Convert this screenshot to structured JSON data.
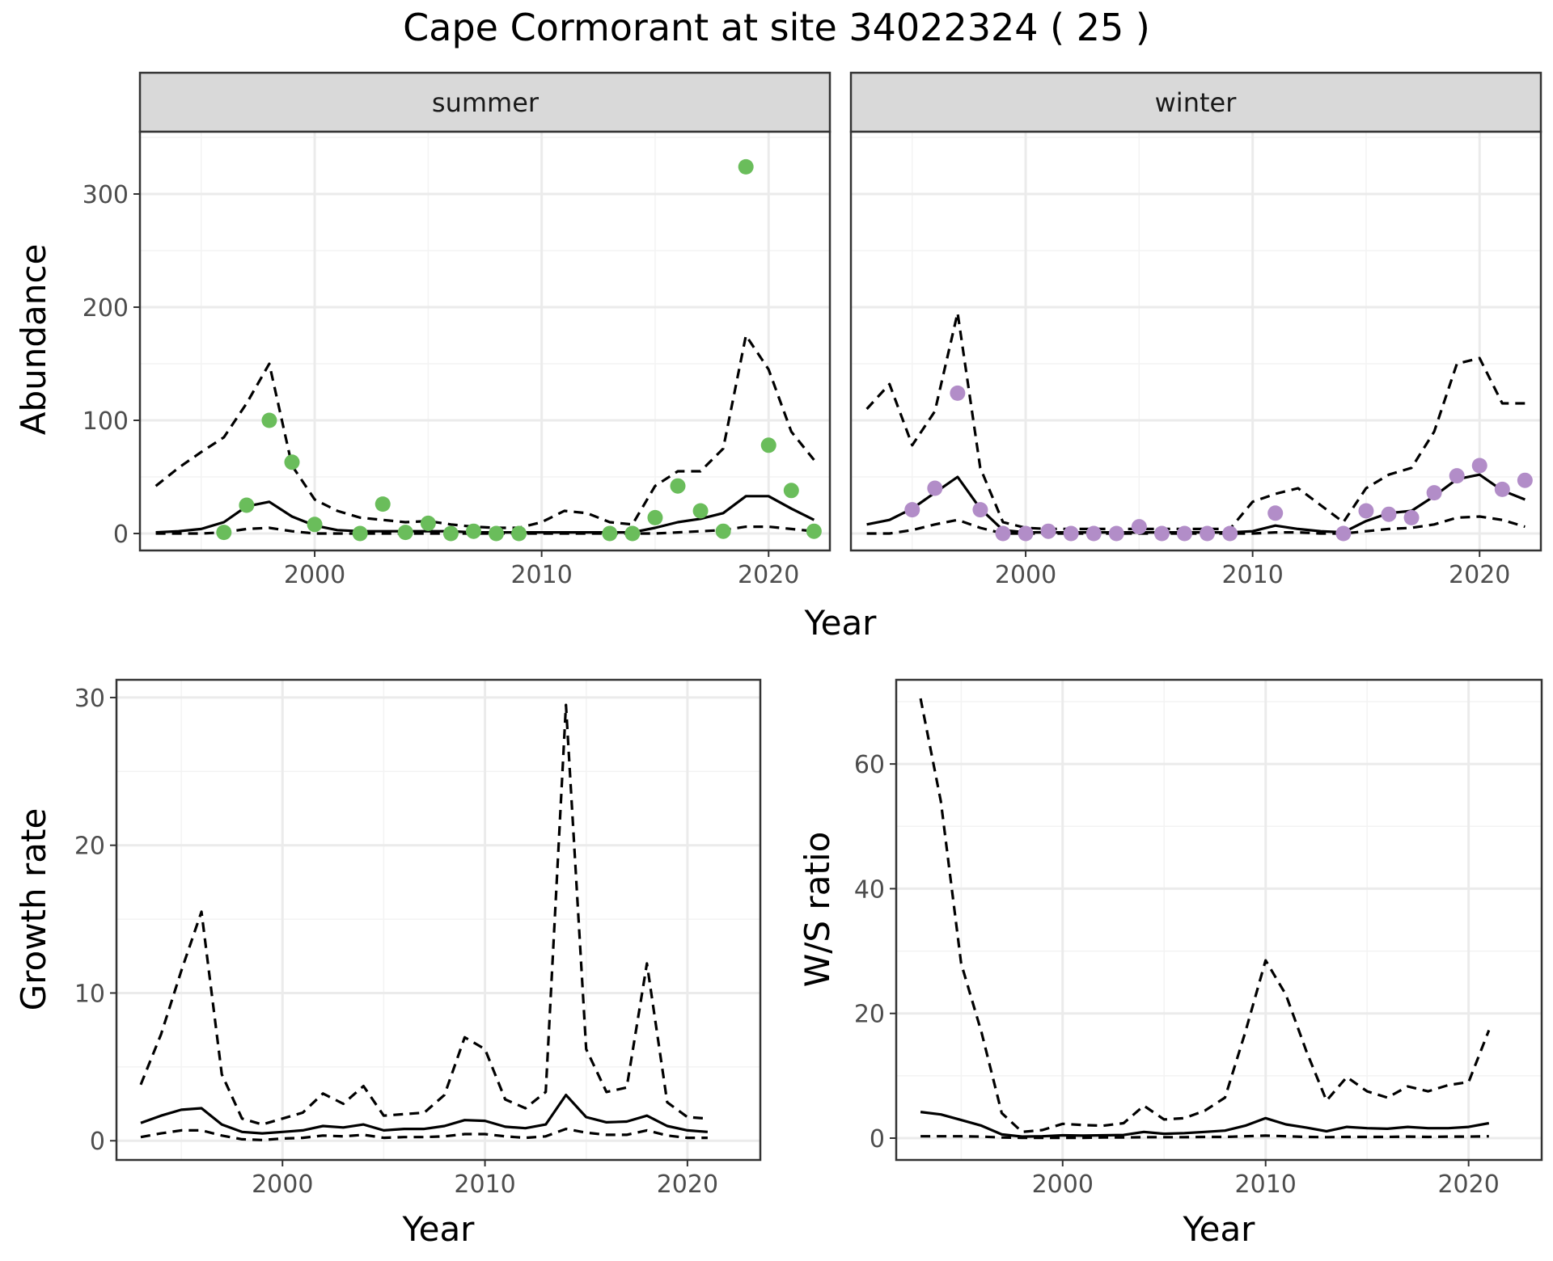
{
  "title": "Cape Cormorant at site 34022324 ( 25 )",
  "colors": {
    "summer_points": "#6ABD5B",
    "winter_points": "#B28DC8",
    "lines": "#000000",
    "panel_border": "#333333",
    "strip_fill": "#D9D9D9",
    "grid": "#EBEBEB"
  },
  "chart_data": [
    {
      "type": "line",
      "panel": "summer",
      "strip_label": "summer",
      "xlabel": "Year",
      "ylabel": "Abundance",
      "xlim": [
        1992.3,
        2022.7
      ],
      "ylim": [
        -15,
        355
      ],
      "xticks": [
        2000,
        2010,
        2020
      ],
      "yticks": [
        0,
        100,
        200,
        300
      ],
      "x": [
        1993,
        1994,
        1995,
        1996,
        1997,
        1998,
        1999,
        2000,
        2001,
        2002,
        2003,
        2004,
        2005,
        2006,
        2007,
        2008,
        2009,
        2010,
        2011,
        2012,
        2013,
        2014,
        2015,
        2016,
        2017,
        2018,
        2019,
        2020,
        2021,
        2022
      ],
      "series": [
        {
          "role": "estimate",
          "style": "solid",
          "values": [
            1,
            2,
            4,
            10,
            24,
            28,
            15,
            7,
            3,
            2,
            2,
            2,
            2,
            2,
            1,
            1,
            1,
            1,
            1,
            1,
            1,
            1,
            5,
            10,
            13,
            18,
            33,
            33,
            22,
            12
          ]
        },
        {
          "role": "upper",
          "style": "dashed",
          "values": [
            42,
            58,
            72,
            85,
            115,
            150,
            60,
            30,
            20,
            14,
            12,
            10,
            11,
            8,
            6,
            5,
            5,
            10,
            20,
            18,
            10,
            8,
            42,
            55,
            55,
            75,
            175,
            145,
            90,
            65
          ]
        },
        {
          "role": "lower",
          "style": "dashed",
          "values": [
            0,
            0,
            0,
            1,
            4,
            5,
            2,
            0,
            0,
            0,
            0,
            0,
            0,
            0,
            0,
            0,
            0,
            0,
            0,
            0,
            0,
            0,
            0,
            1,
            2,
            3,
            6,
            6,
            4,
            2
          ]
        }
      ],
      "points": {
        "x": [
          1996,
          1997,
          1998,
          1999,
          2000,
          2002,
          2003,
          2004,
          2005,
          2006,
          2007,
          2008,
          2009,
          2013,
          2014,
          2015,
          2016,
          2017,
          2018,
          2019,
          2020,
          2021,
          2022
        ],
        "y": [
          1,
          25,
          100,
          63,
          8,
          0,
          26,
          1,
          9,
          0,
          2,
          0,
          0,
          0,
          0,
          14,
          42,
          20,
          2,
          324,
          78,
          38,
          2
        ]
      }
    },
    {
      "type": "line",
      "panel": "winter",
      "strip_label": "winter",
      "xlabel": "Year",
      "ylabel": "Abundance",
      "xlim": [
        1992.3,
        2022.7
      ],
      "ylim": [
        -15,
        355
      ],
      "xticks": [
        2000,
        2010,
        2020
      ],
      "yticks": [
        0,
        100,
        200,
        300
      ],
      "x": [
        1993,
        1994,
        1995,
        1996,
        1997,
        1998,
        1999,
        2000,
        2001,
        2002,
        2003,
        2004,
        2005,
        2006,
        2007,
        2008,
        2009,
        2010,
        2011,
        2012,
        2013,
        2014,
        2015,
        2016,
        2017,
        2018,
        2019,
        2020,
        2021,
        2022
      ],
      "series": [
        {
          "role": "estimate",
          "style": "solid",
          "values": [
            8,
            12,
            22,
            36,
            50,
            22,
            3,
            1,
            1,
            1,
            1,
            1,
            1,
            1,
            1,
            1,
            1,
            2,
            7,
            4,
            2,
            1,
            11,
            18,
            20,
            33,
            48,
            52,
            38,
            30
          ]
        },
        {
          "role": "upper",
          "style": "dashed",
          "values": [
            110,
            132,
            78,
            108,
            195,
            58,
            10,
            5,
            4,
            4,
            4,
            4,
            4,
            4,
            4,
            4,
            4,
            28,
            35,
            40,
            25,
            10,
            40,
            52,
            58,
            90,
            150,
            155,
            115,
            115
          ]
        },
        {
          "role": "lower",
          "style": "dashed",
          "values": [
            0,
            0,
            3,
            8,
            12,
            5,
            0,
            0,
            0,
            0,
            0,
            0,
            0,
            0,
            0,
            0,
            0,
            0,
            1,
            1,
            0,
            0,
            2,
            4,
            5,
            8,
            14,
            15,
            12,
            6
          ]
        }
      ],
      "points": {
        "x": [
          1995,
          1996,
          1997,
          1998,
          1999,
          2000,
          2001,
          2002,
          2003,
          2004,
          2005,
          2006,
          2007,
          2008,
          2009,
          2011,
          2014,
          2015,
          2016,
          2017,
          2018,
          2019,
          2020,
          2021,
          2022
        ],
        "y": [
          21,
          40,
          124,
          21,
          0,
          0,
          2,
          0,
          0,
          0,
          6,
          0,
          0,
          0,
          0,
          18,
          0,
          20,
          17,
          14,
          36,
          51,
          60,
          39,
          47
        ]
      }
    },
    {
      "type": "line",
      "panel": "growth",
      "xlabel": "Year",
      "ylabel": "Growth rate",
      "xlim": [
        1991.8,
        2023.6
      ],
      "ylim": [
        -1.3,
        31.2
      ],
      "xticks": [
        2000,
        2010,
        2020
      ],
      "yticks": [
        0,
        10,
        20,
        30
      ],
      "x": [
        1993,
        1994,
        1995,
        1996,
        1997,
        1998,
        1999,
        2000,
        2001,
        2002,
        2003,
        2004,
        2005,
        2006,
        2007,
        2008,
        2009,
        2010,
        2011,
        2012,
        2013,
        2014,
        2015,
        2016,
        2017,
        2018,
        2019,
        2020,
        2021
      ],
      "series": [
        {
          "role": "estimate",
          "style": "solid",
          "values": [
            1.2,
            1.7,
            2.1,
            2.2,
            1.1,
            0.6,
            0.5,
            0.6,
            0.7,
            1.0,
            0.9,
            1.1,
            0.7,
            0.8,
            0.8,
            1.0,
            1.4,
            1.35,
            0.95,
            0.85,
            1.1,
            3.1,
            1.6,
            1.25,
            1.3,
            1.7,
            1.0,
            0.7,
            0.6
          ]
        },
        {
          "role": "upper",
          "style": "dashed",
          "values": [
            3.8,
            7.2,
            11.5,
            15.5,
            4.5,
            1.5,
            1.1,
            1.5,
            1.9,
            3.2,
            2.5,
            3.7,
            1.7,
            1.8,
            1.9,
            3.1,
            7.0,
            6.2,
            2.8,
            2.2,
            3.3,
            29.5,
            6.2,
            3.3,
            3.6,
            12.0,
            2.6,
            1.6,
            1.5
          ]
        },
        {
          "role": "lower",
          "style": "dashed",
          "values": [
            0.25,
            0.5,
            0.7,
            0.7,
            0.35,
            0.1,
            0.05,
            0.15,
            0.2,
            0.35,
            0.3,
            0.4,
            0.2,
            0.25,
            0.25,
            0.3,
            0.45,
            0.45,
            0.3,
            0.2,
            0.3,
            0.8,
            0.55,
            0.4,
            0.4,
            0.7,
            0.35,
            0.2,
            0.2
          ]
        }
      ]
    },
    {
      "type": "line",
      "panel": "ratio",
      "xlabel": "Year",
      "ylabel": "W/S ratio",
      "xlim": [
        1991.8,
        2023.6
      ],
      "ylim": [
        -3.5,
        73.5
      ],
      "xticks": [
        2000,
        2010,
        2020
      ],
      "yticks": [
        0,
        20,
        40,
        60
      ],
      "x": [
        1993,
        1994,
        1995,
        1996,
        1997,
        1998,
        1999,
        2000,
        2001,
        2002,
        2003,
        2004,
        2005,
        2006,
        2007,
        2008,
        2009,
        2010,
        2011,
        2012,
        2013,
        2014,
        2015,
        2016,
        2017,
        2018,
        2019,
        2020,
        2021
      ],
      "series": [
        {
          "role": "estimate",
          "style": "solid",
          "values": [
            4.2,
            3.8,
            2.9,
            2.0,
            0.6,
            0.25,
            0.3,
            0.45,
            0.4,
            0.45,
            0.5,
            1.0,
            0.7,
            0.8,
            1.0,
            1.2,
            2.0,
            3.2,
            2.2,
            1.7,
            1.1,
            1.8,
            1.6,
            1.5,
            1.8,
            1.6,
            1.6,
            1.8,
            2.4
          ]
        },
        {
          "role": "upper",
          "style": "dashed",
          "values": [
            70.5,
            54.0,
            28.0,
            17.0,
            4.0,
            1.0,
            1.3,
            2.3,
            2.1,
            2.0,
            2.4,
            5.2,
            3.0,
            3.2,
            4.4,
            6.5,
            17.0,
            28.5,
            23.0,
            14.0,
            6.0,
            9.8,
            7.5,
            6.5,
            8.3,
            7.5,
            8.5,
            9.0,
            17.3
          ]
        },
        {
          "role": "lower",
          "style": "dashed",
          "values": [
            0.3,
            0.3,
            0.3,
            0.25,
            0.1,
            0.05,
            0.05,
            0.05,
            0.05,
            0.1,
            0.1,
            0.15,
            0.15,
            0.15,
            0.2,
            0.2,
            0.3,
            0.4,
            0.3,
            0.2,
            0.15,
            0.2,
            0.2,
            0.2,
            0.25,
            0.2,
            0.25,
            0.25,
            0.3
          ]
        }
      ]
    }
  ]
}
